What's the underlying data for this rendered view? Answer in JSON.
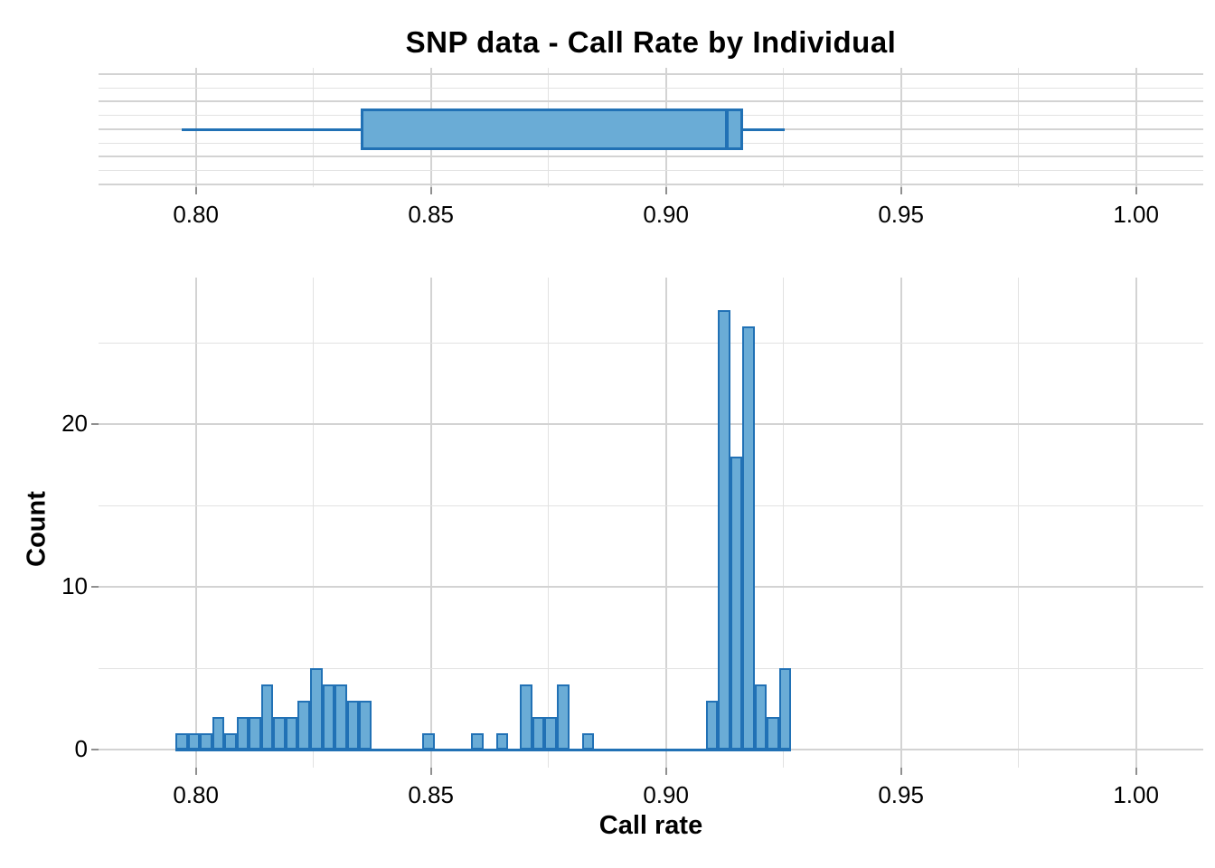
{
  "title": "SNP data - Call Rate by Individual",
  "x_axis": {
    "label": "Call rate",
    "tick_labels": [
      "0.80",
      "0.85",
      "0.90",
      "0.95",
      "1.00"
    ],
    "tick_values": [
      0.8,
      0.85,
      0.9,
      0.95,
      1.0
    ],
    "minor_values": [
      0.825,
      0.875,
      0.925,
      0.975
    ],
    "range": [
      0.7793,
      1.0143
    ]
  },
  "y_axis": {
    "label": "Count",
    "tick_labels": [
      "0",
      "10",
      "20"
    ],
    "tick_values": [
      0,
      10,
      20
    ],
    "minor_values": [
      5,
      15,
      25
    ],
    "range": [
      0,
      29
    ]
  },
  "colors": {
    "bar_fill": "#6aacd6",
    "bar_stroke": "#2171b5",
    "grid_major": "#d3d3d3",
    "grid_minor": "#e2e2e2",
    "tick": "#8f8f8f",
    "text": "#000000",
    "background": "#ffffff"
  },
  "chart_data": [
    {
      "type": "boxplot",
      "orientation": "horizontal",
      "variable": "Call rate",
      "stats": {
        "min": 0.797,
        "q1": 0.835,
        "median": 0.913,
        "q3": 0.9165,
        "max": 0.9253
      },
      "outliers": []
    },
    {
      "type": "histogram",
      "title": "",
      "xlabel": "Call rate",
      "ylabel": "Count",
      "binwidth": 0.0026,
      "xlim": [
        0.7793,
        1.0143
      ],
      "ylim": [
        0,
        29
      ],
      "grid": true,
      "bins": [
        {
          "x": 0.7957,
          "count": 1
        },
        {
          "x": 0.7983,
          "count": 1
        },
        {
          "x": 0.8009,
          "count": 1
        },
        {
          "x": 0.8035,
          "count": 2
        },
        {
          "x": 0.8061,
          "count": 1
        },
        {
          "x": 0.8087,
          "count": 2
        },
        {
          "x": 0.8113,
          "count": 2
        },
        {
          "x": 0.8139,
          "count": 4
        },
        {
          "x": 0.8165,
          "count": 2
        },
        {
          "x": 0.8191,
          "count": 2
        },
        {
          "x": 0.8217,
          "count": 3
        },
        {
          "x": 0.8243,
          "count": 5
        },
        {
          "x": 0.8269,
          "count": 4
        },
        {
          "x": 0.8295,
          "count": 4
        },
        {
          "x": 0.8321,
          "count": 3
        },
        {
          "x": 0.8347,
          "count": 3
        },
        {
          "x": 0.8482,
          "count": 1
        },
        {
          "x": 0.8586,
          "count": 1
        },
        {
          "x": 0.8639,
          "count": 1
        },
        {
          "x": 0.869,
          "count": 4
        },
        {
          "x": 0.8716,
          "count": 2
        },
        {
          "x": 0.8742,
          "count": 2
        },
        {
          "x": 0.8768,
          "count": 4
        },
        {
          "x": 0.8821,
          "count": 1
        },
        {
          "x": 0.9085,
          "count": 3
        },
        {
          "x": 0.9111,
          "count": 27
        },
        {
          "x": 0.9137,
          "count": 18
        },
        {
          "x": 0.9163,
          "count": 26
        },
        {
          "x": 0.9189,
          "count": 4
        },
        {
          "x": 0.9215,
          "count": 2
        },
        {
          "x": 0.9241,
          "count": 5
        }
      ]
    }
  ]
}
